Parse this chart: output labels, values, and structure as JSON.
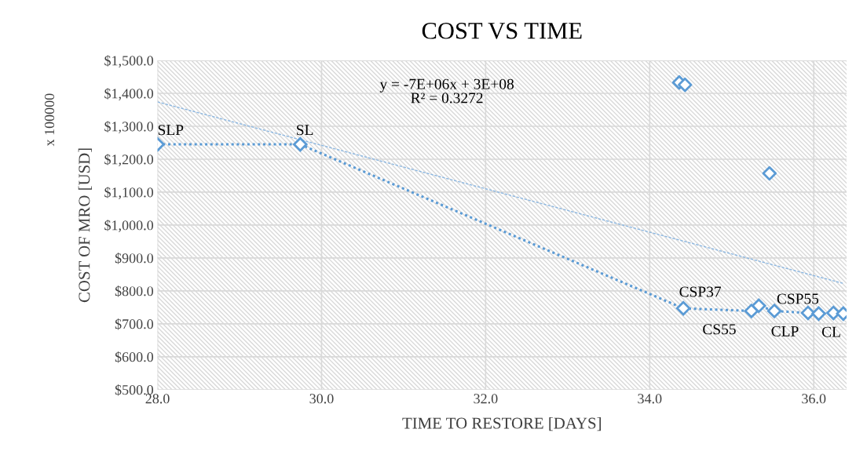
{
  "chart_data": {
    "type": "scatter",
    "title": "COST VS TIME",
    "xlabel": "TIME TO RESTORE [DAYS]",
    "ylabel": "COST OF MRO [USD]",
    "xlim": [
      28,
      36.4
    ],
    "xticks": [
      {
        "value": 28,
        "label": "28.0"
      },
      {
        "value": 30,
        "label": "30.0"
      },
      {
        "value": 32,
        "label": "32.0"
      },
      {
        "value": 34,
        "label": "34.0"
      },
      {
        "value": 36,
        "label": "36.0"
      }
    ],
    "ylim": [
      500,
      1500
    ],
    "yticks": [
      {
        "value": 500,
        "label": "$500.0"
      },
      {
        "value": 600,
        "label": "$600.0"
      },
      {
        "value": 700,
        "label": "$700.0"
      },
      {
        "value": 800,
        "label": "$800.0"
      },
      {
        "value": 900,
        "label": "$900.0"
      },
      {
        "value": 1000,
        "label": "$1,000.0"
      },
      {
        "value": 1100,
        "label": "$1,100.0"
      },
      {
        "value": 1200,
        "label": "$1,200.0"
      },
      {
        "value": 1300,
        "label": "$1,300.0"
      },
      {
        "value": 1400,
        "label": "$1,400.0"
      },
      {
        "value": 1500,
        "label": "$1,500.0"
      }
    ],
    "grid": true,
    "marker": "diamond",
    "series": [
      {
        "type": "line",
        "line_style": "dotted",
        "color": "#5b9bd5",
        "x": [
          28.0,
          29.74,
          34.41,
          35.24,
          35.33,
          35.52,
          35.93,
          36.06,
          36.24,
          36.36
        ],
        "values": [
          1245,
          1245,
          747,
          739,
          755,
          739,
          733,
          731,
          733,
          731
        ]
      },
      {
        "color": "#5b9bd5",
        "x": [
          34.36,
          34.43,
          35.46
        ],
        "values": [
          1433,
          1426,
          1157
        ]
      },
      {
        "type": "line",
        "line_style": "dashed",
        "marker": "none",
        "color": "#8db8e2",
        "x": [
          28.0,
          36.37
        ],
        "values": [
          1374,
          822
        ]
      }
    ],
    "annotations": [
      {
        "text": "SLP",
        "x": 28.0,
        "y": 1245
      },
      {
        "text": "SL",
        "x": 29.74,
        "y": 1245
      },
      {
        "text": "CSP37",
        "x": 34.41,
        "y": 747
      },
      {
        "text": "CS55",
        "x": 35.24,
        "y": 739
      },
      {
        "text": "CSP55",
        "x": 35.52,
        "y": 739
      },
      {
        "text": "CLP",
        "x": 35.93,
        "y": 733
      },
      {
        "text": "CL",
        "x": 36.36,
        "y": 731
      },
      "y = -7E+06x + 3E+08\nR² = 0.3272",
      "x 100000"
    ]
  }
}
